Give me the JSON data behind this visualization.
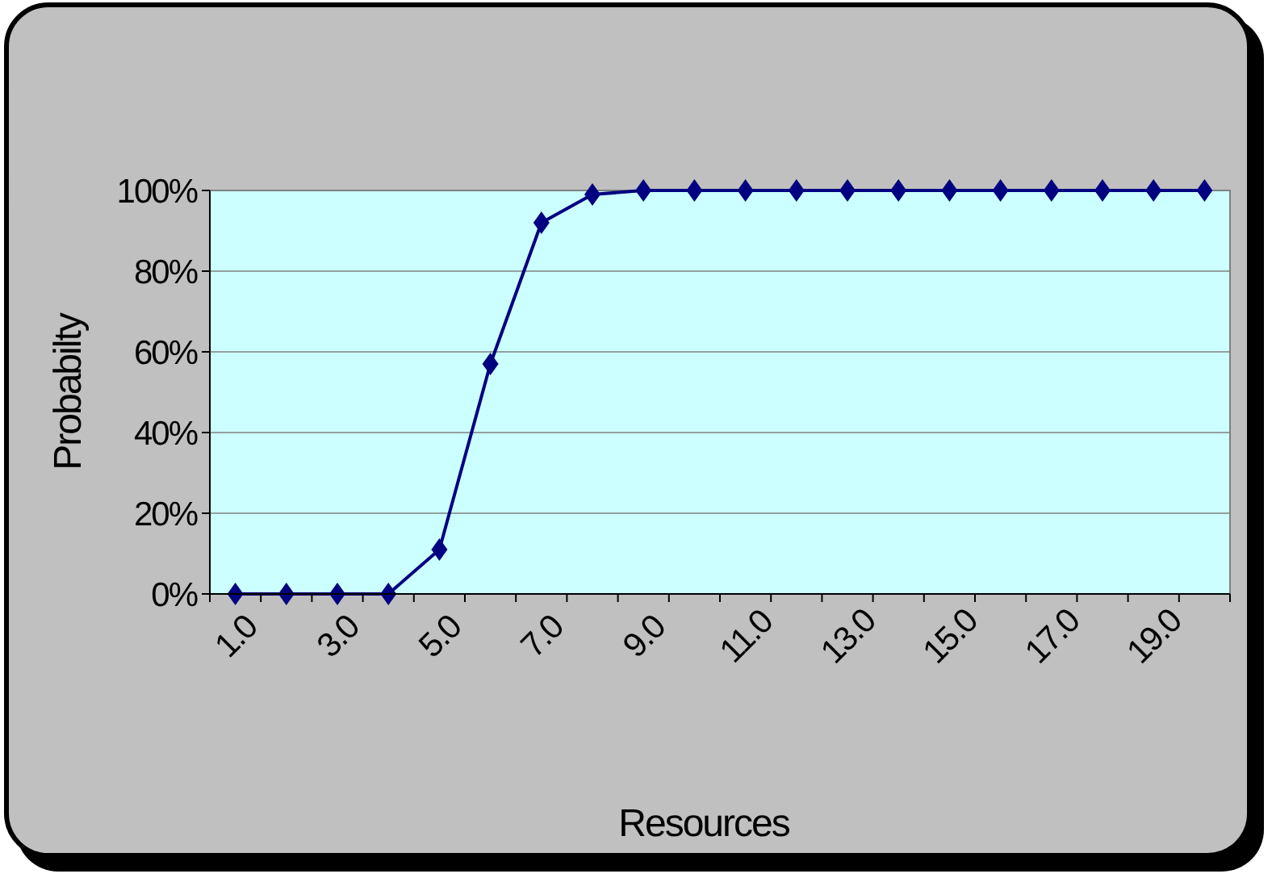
{
  "chart_data": {
    "type": "line",
    "xlabel": "Resources",
    "ylabel": "Probabilty",
    "categories": [
      "1.0",
      null,
      "3.0",
      null,
      "5.0",
      null,
      "7.0",
      null,
      "9.0",
      null,
      "11.0",
      null,
      "13.0",
      null,
      "15.0",
      null,
      "17.0",
      null,
      "19.0",
      null
    ],
    "series": [
      {
        "color": "#000080",
        "values": [
          0,
          0,
          0,
          0,
          11,
          57,
          92,
          99,
          100,
          100,
          100,
          100,
          100,
          100,
          100,
          100,
          100,
          100,
          100,
          100
        ]
      }
    ],
    "ylim": [
      0,
      100
    ],
    "yticks": [
      {
        "value": 0,
        "label": "0%"
      },
      {
        "value": 20,
        "label": "20%"
      },
      {
        "value": 40,
        "label": "40%"
      },
      {
        "value": 60,
        "label": "60%"
      },
      {
        "value": 80,
        "label": "80%"
      },
      {
        "value": 100,
        "label": "100%"
      }
    ],
    "grid": "y",
    "marker": "diamond",
    "line_style": "solid"
  }
}
